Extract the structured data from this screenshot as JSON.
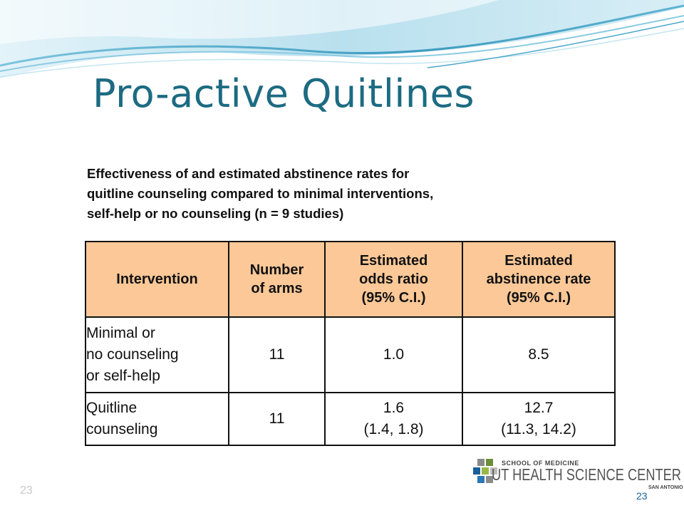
{
  "slide": {
    "title": "Pro-active Quitlines",
    "caption_lines": [
      "Effectiveness of and estimated abstinence rates for",
      "quitline counseling compared to minimal interventions,",
      "self-help or no counseling (n = 9 studies)"
    ],
    "slide_number": "23"
  },
  "table": {
    "headers": [
      [
        "Intervention"
      ],
      [
        "Number",
        "of arms"
      ],
      [
        "Estimated",
        "odds ratio",
        "(95% C.I.)"
      ],
      [
        "Estimated",
        "abstinence rate",
        "(95% C.I.)"
      ]
    ],
    "rows": [
      {
        "intervention": [
          "Minimal or",
          "no counseling",
          "or self-help"
        ],
        "arms": "11",
        "odds_ratio": [
          "1.0"
        ],
        "abstinence_rate": [
          "8.5"
        ]
      },
      {
        "intervention": [
          "Quitline",
          "counseling"
        ],
        "arms": "11",
        "odds_ratio": [
          "1.6",
          "(1.4, 1.8)"
        ],
        "abstinence_rate": [
          "12.7",
          "(11.3, 14.2)"
        ]
      }
    ]
  },
  "logo": {
    "line1": "SCHOOL OF MEDICINE",
    "line2": "UT HEALTH SCIENCE CENTER",
    "line3": "SAN ANTONIO",
    "page_number": "23"
  },
  "colors": {
    "title": "#1c6b82",
    "header_fill": "#fcc897",
    "wave_light": "#a8d8ea",
    "wave_dark": "#3e9cc0"
  }
}
